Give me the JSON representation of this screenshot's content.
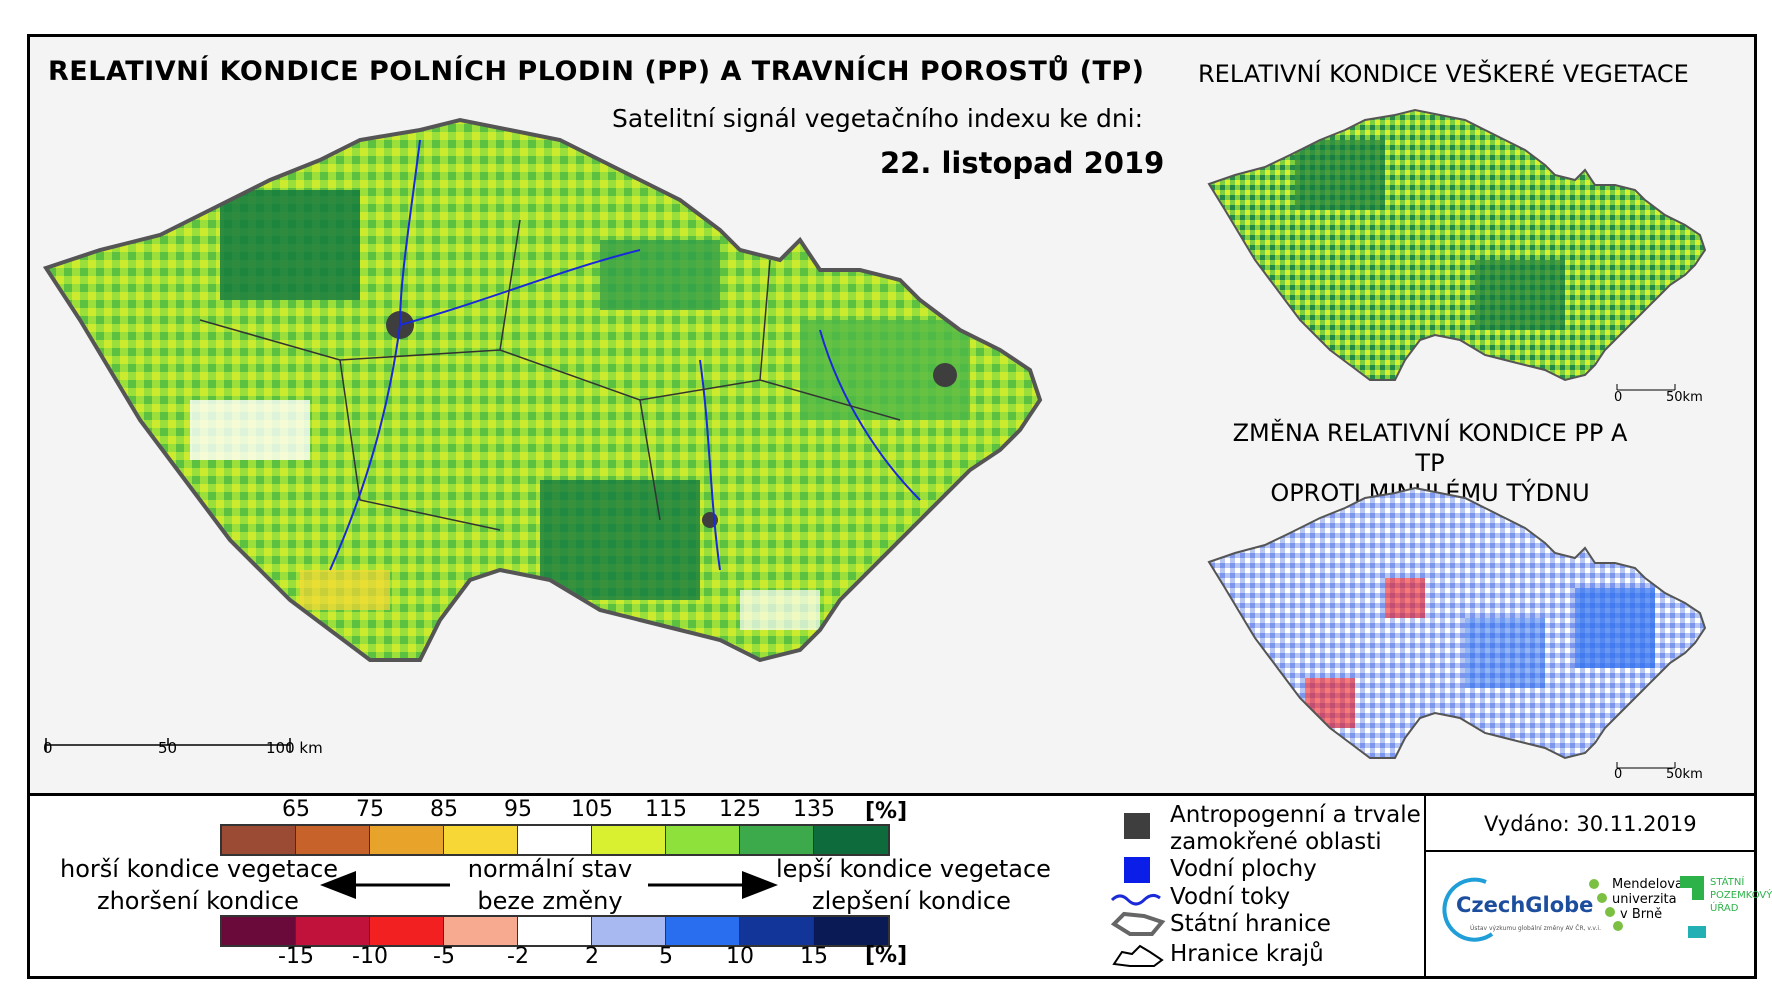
{
  "main_title": "RELATIVNÍ KONDICE POLNÍCH PLODIN (PP) A TRAVNÍCH POROSTŮ (TP)",
  "subtitle": "Satelitní signál vegetačního indexu ke dni:",
  "date": "22. listopad 2019",
  "side_title_top": "RELATIVNÍ KONDICE VEŠKERÉ VEGETACE",
  "side_title_bottom_1": "ZMĚNA RELATIVNÍ KONDICE PP A TP",
  "side_title_bottom_2": "OPROTI MINULÉMU TÝDNU",
  "scale_main": {
    "t0": "0",
    "t1": "50",
    "t2": "100 km"
  },
  "scale_small_top": {
    "t0": "0",
    "t1": "50km"
  },
  "scale_small_bottom": {
    "t0": "0",
    "t1": "50km"
  },
  "condition_scale": {
    "unit": "[%]",
    "ticks": [
      "65",
      "75",
      "85",
      "95",
      "105",
      "115",
      "125",
      "135"
    ],
    "colors": [
      "#9b4a34",
      "#c8622b",
      "#e8a42a",
      "#f7d736",
      "#ffffff",
      "#d8f030",
      "#8ee03a",
      "#3caa4a",
      "#0e6b3c"
    ]
  },
  "change_scale": {
    "unit": "[%]",
    "ticks": [
      "-15",
      "-10",
      "-5",
      "-2",
      "2",
      "5",
      "10",
      "15"
    ],
    "colors": [
      "#6a0a3a",
      "#c0123a",
      "#f22020",
      "#f7aa90",
      "#ffffff",
      "#a8b8f0",
      "#2a6ef0",
      "#12359a",
      "#0a1a55"
    ]
  },
  "legend_text": {
    "worse_1": "horší kondice vegetace",
    "worse_2": "zhoršení kondice",
    "normal_1": "normální stav",
    "normal_2": "beze změny",
    "better_1": "lepší kondice vegetace",
    "better_2": "zlepšení kondice"
  },
  "symbols": {
    "anthropogenic_1": "Antropogenní a trvale",
    "anthropogenic_2": "zamokřené oblasti",
    "water_bodies": "Vodní plochy",
    "rivers": "Vodní toky",
    "state_border": "Státní hranice",
    "region_border": "Hranice krajů"
  },
  "colors": {
    "anthropogenic": "#3e3e3e",
    "water": "#0a1ee8",
    "river": "#1a2ad8"
  },
  "issued": "Vydáno: 30.11.2019",
  "logos": {
    "czechglobe": "CzechGlobe",
    "czechglobe_sub": "Ústav výzkumu globální změny AV ČR, v.v.i.",
    "mendelu_1": "Mendelova",
    "mendelu_2": "univerzita",
    "mendelu_3": "v Brně",
    "spu_1": "STÁTNÍ",
    "spu_2": "POZEMKOVÝ",
    "spu_3": "ÚŘAD"
  }
}
